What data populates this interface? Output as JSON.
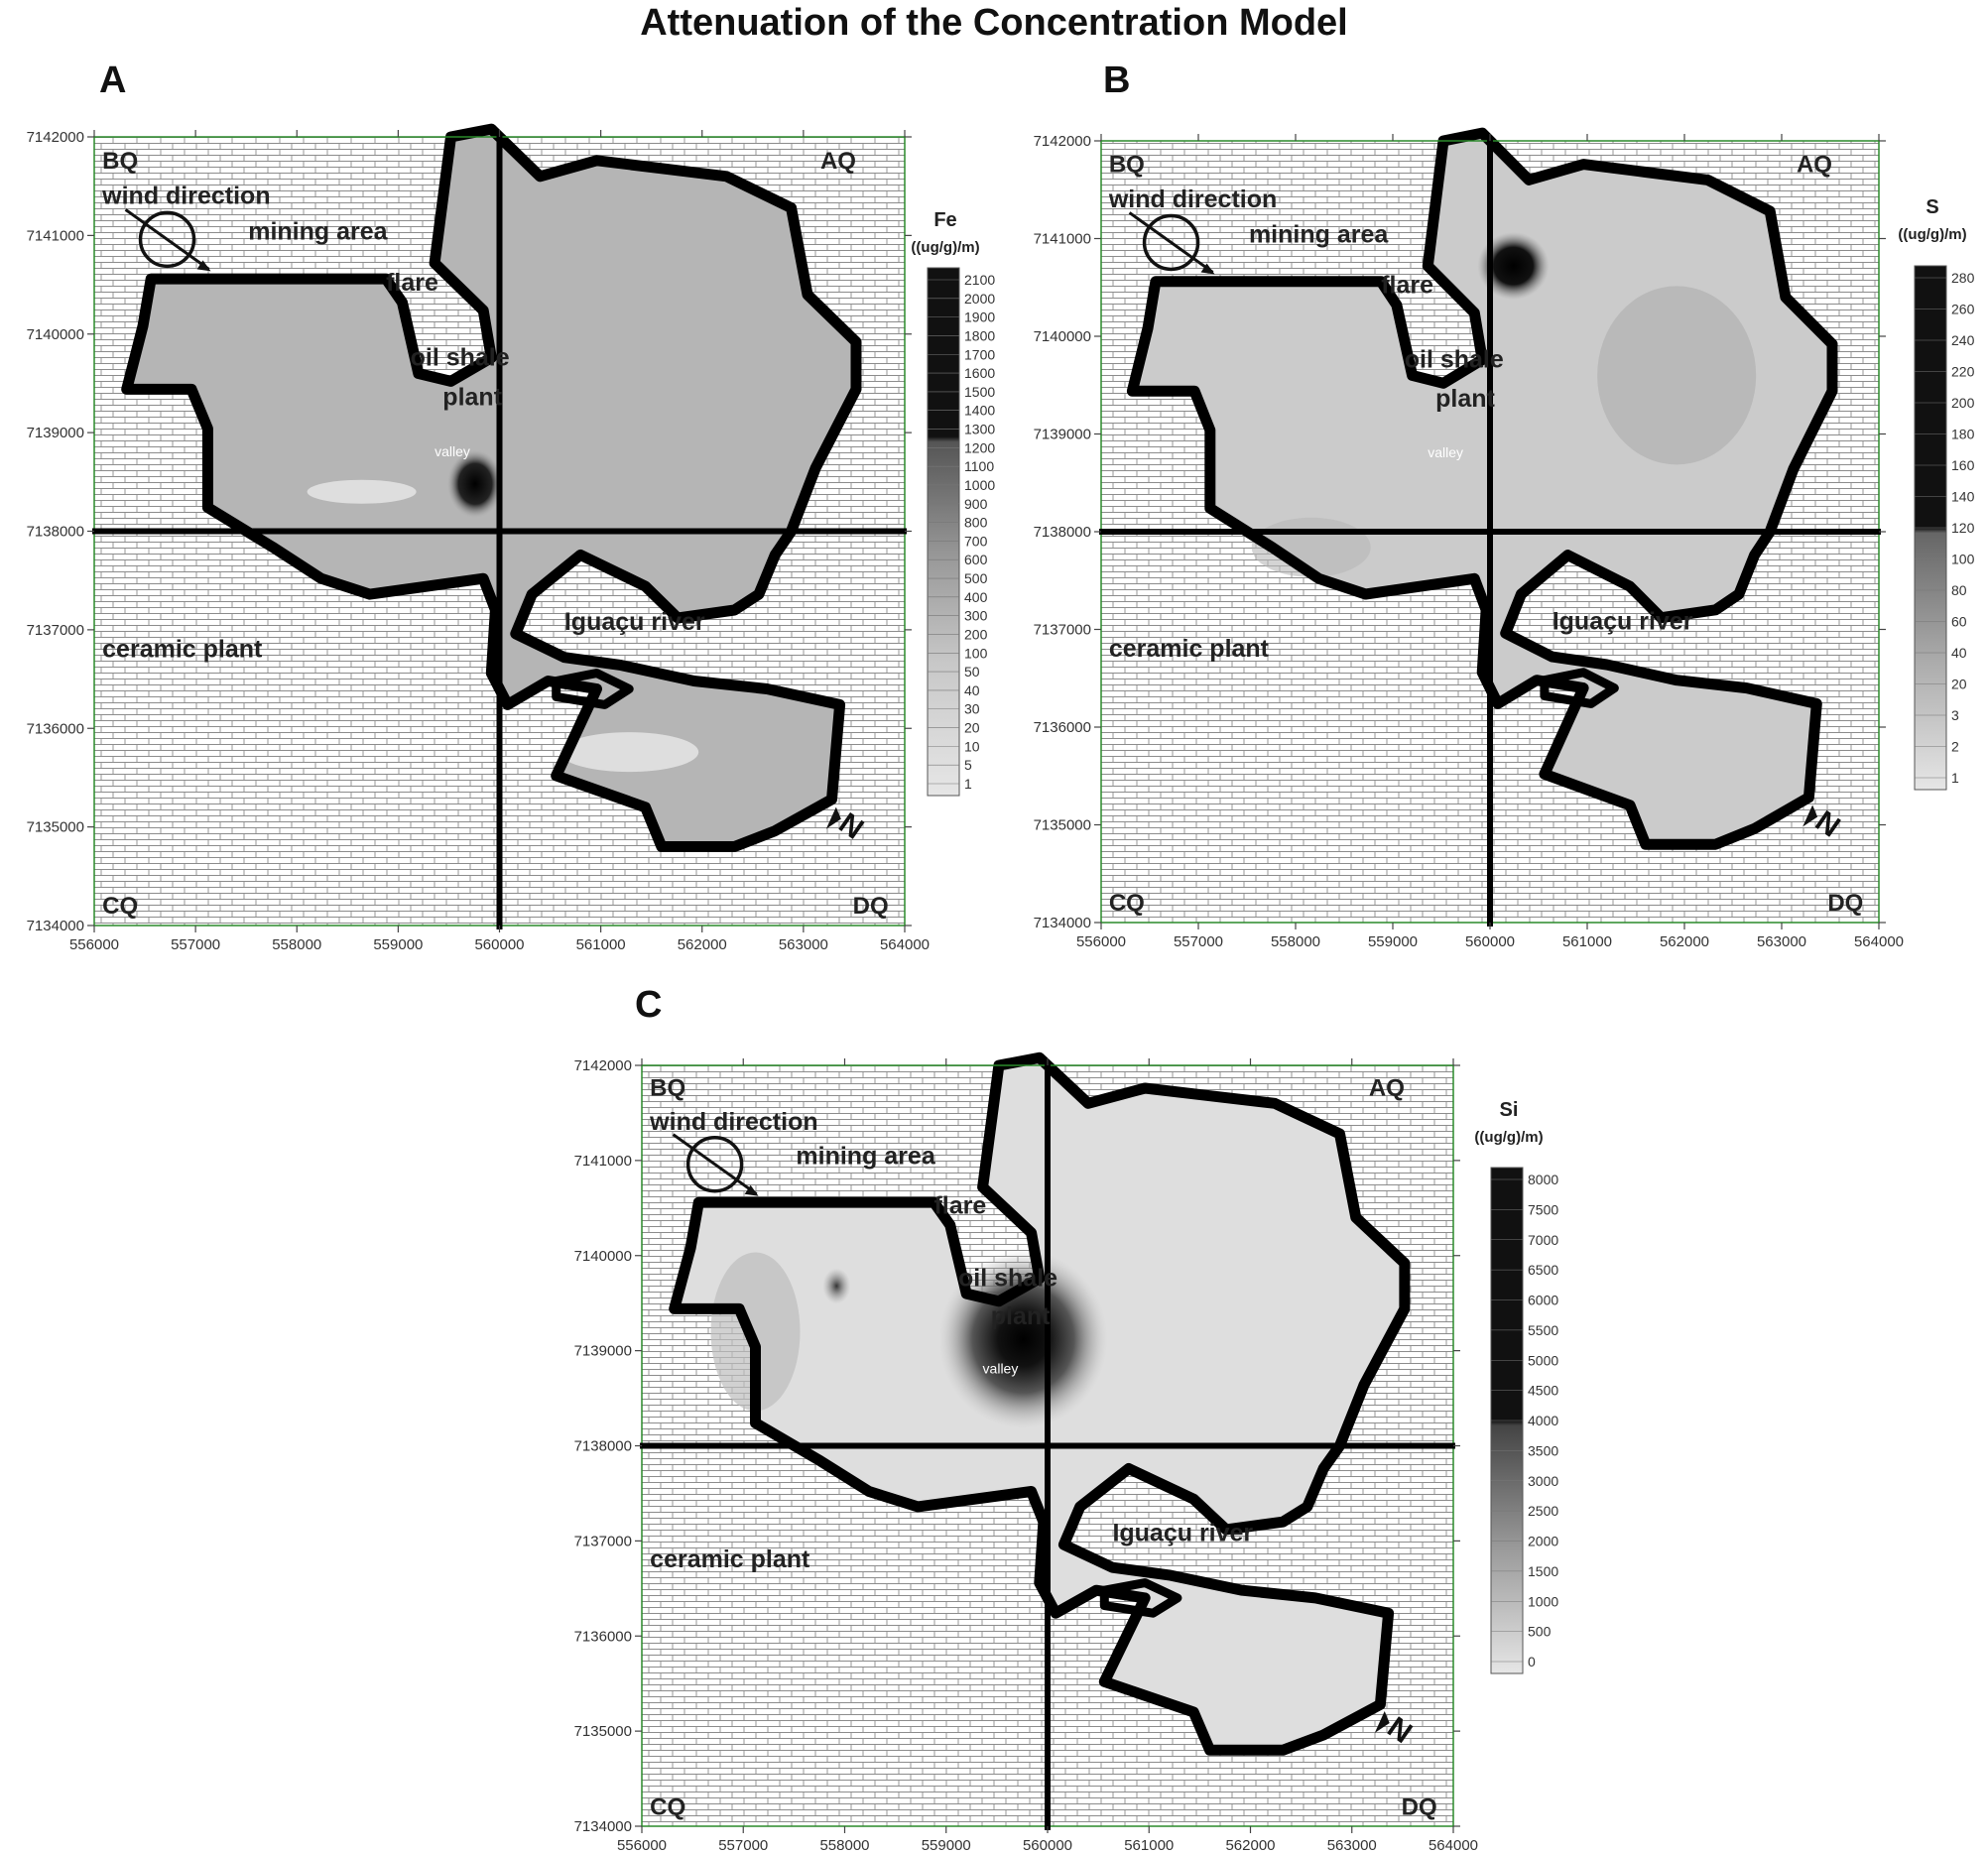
{
  "title": "Attenuation of the Concentration Model",
  "x_ticks": [
    "556000",
    "557000",
    "558000",
    "559000",
    "560000",
    "561000",
    "562000",
    "563000",
    "564000"
  ],
  "y_ticks": [
    "7142000",
    "7141000",
    "7140000",
    "7139000",
    "7138000",
    "7137000",
    "7136000",
    "7135000",
    "7134000"
  ],
  "labels": {
    "quadrant_bq": "BQ",
    "quadrant_aq": "AQ",
    "quadrant_cq": "CQ",
    "quadrant_dq": "DQ",
    "wind_direction": "wind direction",
    "mining_area": "mining area",
    "flare": "flare",
    "oil_shale": "oil shale",
    "plant": "plant",
    "valley": "valley",
    "iguacu_river": "Iguaçu river",
    "ceramic_plant": "ceramic plant",
    "north": "N"
  },
  "panels": [
    {
      "letter": "A",
      "element": "Fe",
      "unit": "((ug/g)/m)",
      "legend_levels": [
        "2100",
        "2000",
        "1900",
        "1800",
        "1700",
        "1600",
        "1500",
        "1400",
        "1300",
        "1200",
        "1100",
        "1000",
        "900",
        "800",
        "700",
        "600",
        "500",
        "400",
        "300",
        "200",
        "100",
        "50",
        "40",
        "30",
        "20",
        "10",
        "5",
        "1"
      ]
    },
    {
      "letter": "B",
      "element": "S",
      "unit": "((ug/g)/m)",
      "legend_levels": [
        "280",
        "260",
        "240",
        "220",
        "200",
        "180",
        "160",
        "140",
        "120",
        "100",
        "80",
        "60",
        "40",
        "20",
        "3",
        "2",
        "1"
      ]
    },
    {
      "letter": "C",
      "element": "Si",
      "unit": "((ug/g)/m)",
      "legend_levels": [
        "8000",
        "7500",
        "7000",
        "6500",
        "6000",
        "5500",
        "5000",
        "4500",
        "4000",
        "3500",
        "3000",
        "2500",
        "2000",
        "1500",
        "1000",
        "500",
        "0"
      ]
    }
  ]
}
